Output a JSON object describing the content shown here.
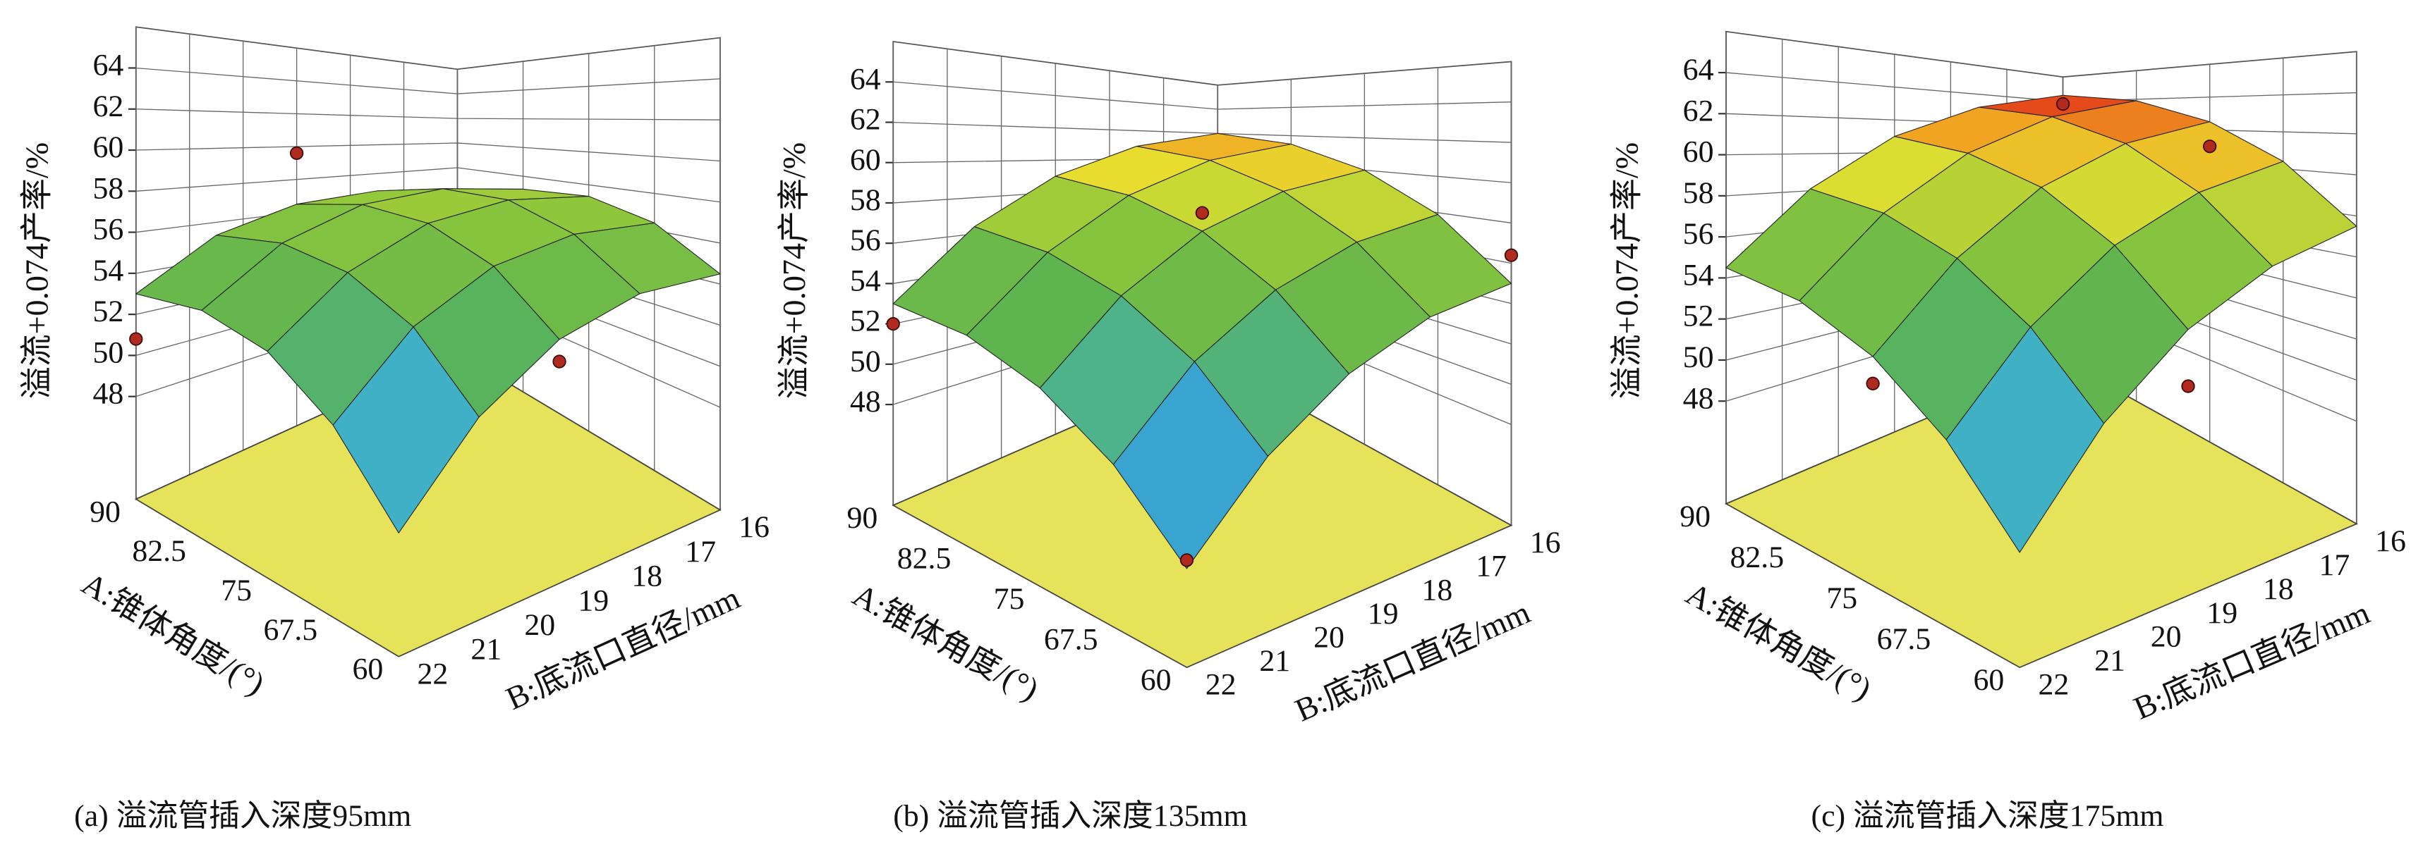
{
  "chart_data": [
    {
      "type": "surface",
      "caption": "(a) 溢流管插入深度95mm",
      "zlabel": "溢流+0.074产率/%",
      "xlabel": "A:锥体角度/(°)",
      "ylabel": "B:底流口直径/mm",
      "x": [
        60,
        67.5,
        75,
        82.5,
        90
      ],
      "y": [
        16,
        17.5,
        19,
        20.5,
        22
      ],
      "z": [
        [
          54.5,
          54.2,
          52.9,
          50.6,
          47.3
        ],
        [
          56.4,
          56.3,
          55.3,
          53.3,
          50.2
        ],
        [
          57.3,
          57.5,
          56.7,
          54.9,
          52.2
        ],
        [
          57.1,
          57.6,
          57.1,
          55.6,
          53.1
        ],
        [
          56.0,
          56.8,
          56.5,
          55.3,
          53.0
        ]
      ],
      "xlim": [
        60,
        90
      ],
      "ylim": [
        16,
        22
      ],
      "zlim": [
        43,
        66
      ],
      "xticks": [
        60,
        67.5,
        75,
        82.5,
        90
      ],
      "yticks": [
        16,
        17,
        18,
        19,
        20,
        21,
        22
      ],
      "zticks": [
        48,
        50,
        52,
        54,
        56,
        58,
        60,
        62,
        64
      ],
      "points": {
        "x": [
          90,
          90,
          60
        ],
        "y": [
          19,
          22,
          19
        ],
        "z": [
          59.6,
          50.8,
          52.0
        ],
        "color": "#b02a20"
      },
      "floor_color": "#e6e35a"
    },
    {
      "type": "surface",
      "caption": "(b) 溢流管插入深度135mm",
      "zlabel": "溢流+0.074产率/%",
      "xlabel": "A:锥体角度/(°)",
      "ylabel": "B:底流口直径/mm",
      "x": [
        60,
        67.5,
        75,
        82.5,
        90
      ],
      "y": [
        16,
        17.5,
        19,
        20.5,
        22
      ],
      "z": [
        [
          55.0,
          54.0,
          52.2,
          49.7,
          46.5
        ],
        [
          57.9,
          56.8,
          55.0,
          52.5,
          49.2
        ],
        [
          60.0,
          58.9,
          57.1,
          54.5,
          51.2
        ],
        [
          61.4,
          60.3,
          58.4,
          55.8,
          52.5
        ],
        [
          62.0,
          60.9,
          59.0,
          56.4,
          53.0
        ]
      ],
      "xlim": [
        60,
        90
      ],
      "ylim": [
        16,
        22
      ],
      "zlim": [
        43,
        66
      ],
      "xticks": [
        60,
        67.5,
        75,
        82.5,
        90
      ],
      "yticks": [
        16,
        17,
        18,
        19,
        20,
        21,
        22
      ],
      "zticks": [
        48,
        50,
        52,
        54,
        56,
        58,
        60,
        62,
        64
      ],
      "points": {
        "x": [
          75,
          60,
          60,
          90
        ],
        "y": [
          19,
          16,
          22,
          22
        ],
        "z": [
          58.0,
          56.4,
          46.8,
          52.0
        ],
        "color": "#b02a20"
      },
      "floor_color": "#e6e35a"
    },
    {
      "type": "surface",
      "caption": "(c) 溢流管插入深度175mm",
      "zlabel": "溢流+0.074产率/%",
      "xlabel": "A:锥体角度/(°)",
      "ylabel": "B:底流口直径/mm",
      "x": [
        60,
        67.5,
        75,
        82.5,
        90
      ],
      "y": [
        16,
        17.5,
        19,
        20.5,
        22
      ],
      "z": [
        [
          57.5,
          56.0,
          53.8,
          50.8,
          47.0
        ],
        [
          60.4,
          58.9,
          56.7,
          53.7,
          50.0
        ],
        [
          62.5,
          61.1,
          58.9,
          55.9,
          52.3
        ],
        [
          63.9,
          62.5,
          60.3,
          57.4,
          53.8
        ],
        [
          64.5,
          63.1,
          61.0,
          58.1,
          54.5
        ]
      ],
      "xlim": [
        60,
        90
      ],
      "ylim": [
        16,
        22
      ],
      "zlim": [
        43,
        66
      ],
      "xticks": [
        60,
        67.5,
        75,
        82.5,
        90
      ],
      "yticks": [
        16,
        17,
        18,
        19,
        20,
        21,
        22
      ],
      "zticks": [
        48,
        50,
        52,
        54,
        56,
        58,
        60,
        62,
        64
      ],
      "points": {
        "x": [
          90,
          75,
          60,
          75
        ],
        "y": [
          16,
          22,
          19,
          16
        ],
        "z": [
          63.8,
          51.2,
          51.5,
          61.0
        ],
        "color": "#b02a20"
      },
      "floor_color": "#e6e35a"
    }
  ]
}
